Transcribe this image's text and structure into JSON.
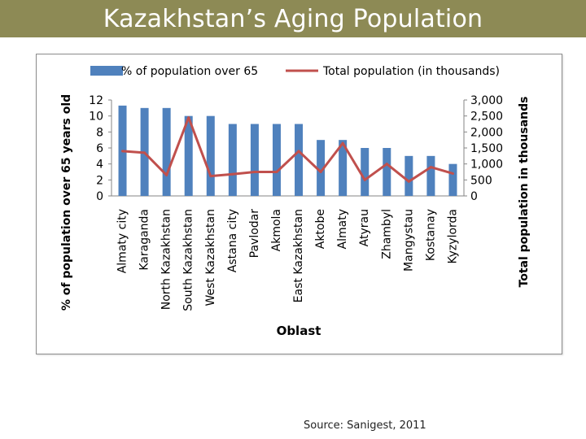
{
  "slide": {
    "title": "Kazakhstan’s Aging Population",
    "source": "Source: Sanigest, 2011"
  },
  "colors": {
    "title_bar": "#8d8a55",
    "bar": "#4f81bd",
    "line": "#c0504d"
  },
  "chart_data": {
    "type": "bar",
    "secondary_type": "line",
    "categories": [
      "Almaty city",
      "Karaganda",
      "North Kazakhstan",
      "South Kazakhstan",
      "West Kazakhstan",
      "Astana city",
      "Pavlodar",
      "Akmola",
      "East Kazakhstan",
      "Aktobe",
      "Almaty",
      "Atyrau",
      "Zhambyl",
      "Mangystau",
      "Kostanay",
      "Kyzylorda"
    ],
    "series": [
      {
        "name": "% of population over 65",
        "type": "bar",
        "axis": "left",
        "values": [
          11.3,
          11.0,
          11.0,
          10.0,
          10.0,
          9.0,
          9.0,
          9.0,
          9.0,
          7.0,
          7.0,
          6.0,
          6.0,
          5.0,
          5.0,
          4.0
        ]
      },
      {
        "name": "Total population (in thousands)",
        "type": "line",
        "axis": "right",
        "values": [
          1400,
          1350,
          650,
          2450,
          620,
          680,
          750,
          750,
          1400,
          750,
          1650,
          500,
          1000,
          450,
          900,
          700
        ]
      }
    ],
    "xlabel": "Oblast",
    "ylabel": "% of population over 65 years old",
    "y2label": "Total population in thousands",
    "ylim": [
      0,
      12
    ],
    "y2lim": [
      0,
      3000
    ],
    "yticks": [
      "0",
      "2",
      "4",
      "6",
      "8",
      "10",
      "12"
    ],
    "y2ticks": [
      "0",
      "500",
      "1,000",
      "1,500",
      "2,000",
      "2,500",
      "3,000"
    ],
    "legend": "top",
    "grid": false
  }
}
